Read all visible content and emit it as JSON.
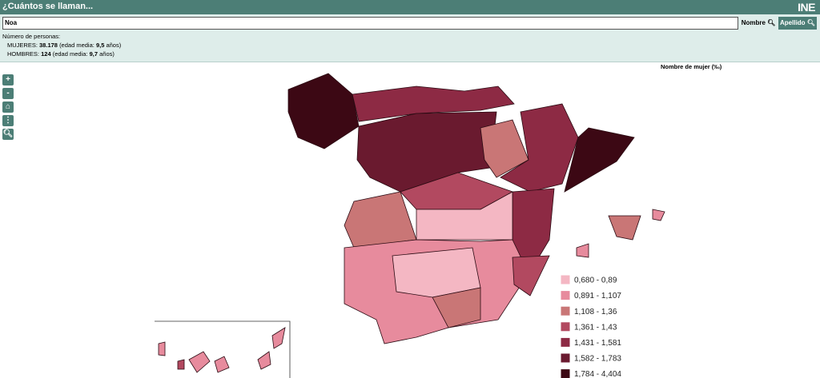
{
  "header": {
    "title": "¿Cuántos se llaman...",
    "logo": "INE"
  },
  "search": {
    "value": "Noa",
    "buttons": [
      "Nombre",
      "Apellido"
    ]
  },
  "info": {
    "heading": "Número de personas:",
    "women": {
      "label": "MUJERES:",
      "count": "38.178",
      "age_label": "(edad media:",
      "age": "9,5",
      "unit": "años)"
    },
    "men": {
      "label": "HOMBRES:",
      "count": "124",
      "age_label": "(edad media:",
      "age": "9,7",
      "unit": "años)"
    }
  },
  "controls": [
    "+",
    "-"
  ],
  "legend": {
    "title": "Nombre de mujer (‰)",
    "items": [
      {
        "label": "0,680 - 0,89",
        "color": "#f4b7c3"
      },
      {
        "label": "0,891 - 1,107",
        "color": "#e78b9d"
      },
      {
        "label": "1,108 - 1,36",
        "color": "#c97676"
      },
      {
        "label": "1,361 - 1,43",
        "color": "#b24960"
      },
      {
        "label": "1,431 - 1,581",
        "color": "#8d2a44"
      },
      {
        "label": "1,582 - 1,783",
        "color": "#6a1a2f"
      },
      {
        "label": "1,784 - 4,404",
        "color": "#3c0814"
      }
    ]
  }
}
